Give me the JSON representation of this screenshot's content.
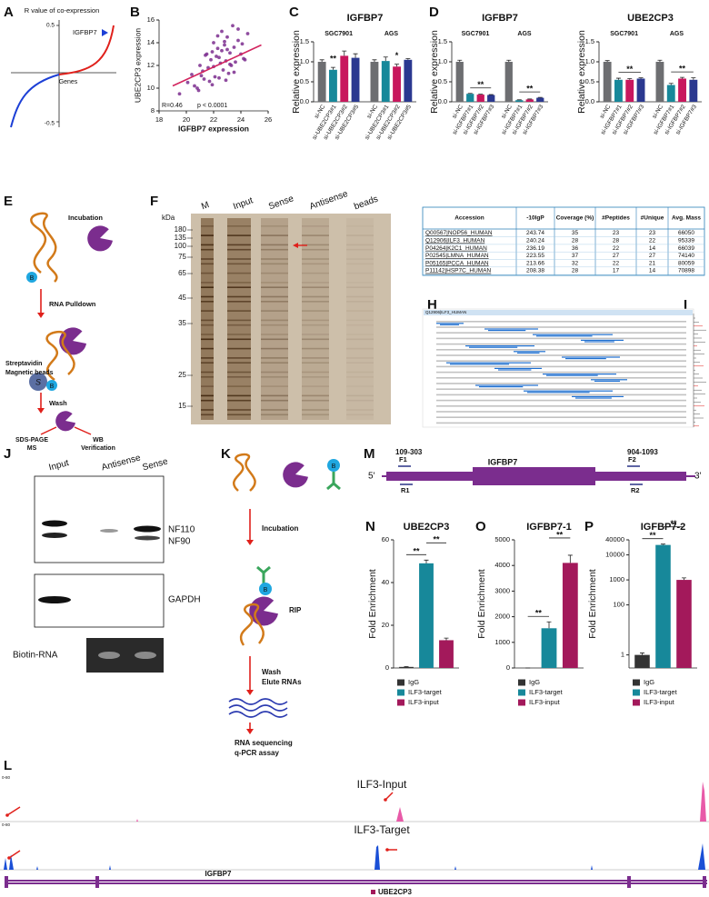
{
  "panels": [
    "A",
    "B",
    "C",
    "D",
    "E",
    "F",
    "G",
    "H",
    "I",
    "J",
    "K",
    "M",
    "N",
    "O",
    "P",
    "L"
  ],
  "panel_a": {
    "y_label": "R value of co-expression",
    "x_label": "Genes",
    "gene": "IGFBP7",
    "yticks": [
      "0.5",
      "-0.5"
    ]
  },
  "chart_data": [
    {
      "type": "scatter",
      "x_label": "IGFBP7 expression",
      "y_label": "UBE2CP3 expression",
      "xlim": [
        18,
        26
      ],
      "xticks": [
        18,
        20,
        22,
        24,
        26
      ],
      "ylim": [
        8,
        16
      ],
      "yticks": [
        8,
        10,
        12,
        14,
        16
      ],
      "color": "#7b2d8e",
      "annotations": [
        "R=0.46",
        "p < 0.0001"
      ],
      "trend_line": {
        "x": [
          19,
          25.5
        ],
        "y": [
          10.2,
          13.8
        ],
        "color": "#d2245e"
      },
      "x": [
        19.5,
        20.1,
        20.4,
        20.8,
        21.0,
        21.2,
        21.3,
        21.5,
        21.6,
        21.8,
        21.9,
        22.0,
        22.1,
        22.2,
        22.3,
        22.4,
        22.5,
        22.6,
        22.7,
        22.8,
        22.9,
        23.0,
        23.1,
        23.2,
        23.3,
        23.4,
        23.5,
        23.6,
        23.8,
        24.0,
        24.2,
        24.5,
        20.9,
        21.4,
        21.7,
        22.0,
        22.3,
        22.6,
        22.9,
        23.2,
        23.5,
        23.8,
        24.1,
        21.1,
        22.4,
        23.0,
        20.6,
        24.3,
        22.8,
        21.9
      ],
      "y": [
        9.5,
        10.5,
        11.2,
        10.0,
        12.0,
        11.5,
        10.8,
        13.0,
        11.8,
        12.5,
        10.3,
        14.0,
        11.0,
        12.8,
        13.5,
        10.9,
        12.2,
        15.0,
        11.6,
        13.8,
        12.4,
        14.5,
        11.3,
        13.1,
        12.0,
        15.5,
        13.6,
        12.3,
        14.2,
        13.0,
        12.6,
        14.8,
        9.8,
        12.9,
        10.6,
        11.9,
        14.6,
        13.3,
        10.7,
        12.1,
        11.4,
        15.2,
        13.9,
        11.1,
        12.7,
        13.4,
        10.2,
        12.5,
        14.1,
        13.2
      ]
    },
    {
      "type": "bar",
      "title": "IGFBP7",
      "y_label": "Relative expression",
      "groups": [
        "SGC7901",
        "AGS"
      ],
      "categories": [
        "si-NC",
        "si-UBE2CP3#1",
        "si-UBE2CP3#2",
        "si-UBE2CP3#5",
        "si-NC",
        "si-UBE2CP3#1",
        "si-UBE2CP3#2",
        "si-UBE2CP3#5"
      ],
      "values": [
        1.0,
        0.8,
        1.15,
        1.1,
        1.0,
        1.02,
        0.88,
        1.05
      ],
      "errors": [
        0.05,
        0.06,
        0.12,
        0.1,
        0.05,
        0.1,
        0.06,
        0.03
      ],
      "colors": [
        "#6d6e71",
        "#17889a",
        "#c8175d",
        "#2b3990",
        "#6d6e71",
        "#17889a",
        "#c8175d",
        "#2b3990"
      ],
      "ylim": [
        0,
        1.5
      ],
      "yticks": [
        {
          "value": 0,
          "label": "0.0"
        },
        {
          "value": 0.5,
          "label": "0.5"
        },
        {
          "value": 1,
          "label": "1.0"
        },
        {
          "value": 1.5,
          "label": "1.5"
        }
      ],
      "annotations": [
        "**",
        "*"
      ]
    },
    {
      "type": "bar",
      "title": "IGFBP7",
      "y_label": "Relative expression",
      "groups": [
        "SGC7901",
        "AGS"
      ],
      "categories": [
        "si-NC",
        "si-IGFBP7#1",
        "si-IGFBP7#2",
        "si-IGFBP7#3",
        "si-NC",
        "si-IGFBP7#1",
        "si-IGFBP7#2",
        "si-IGFBP7#3"
      ],
      "values": [
        1.0,
        0.2,
        0.18,
        0.17,
        1.0,
        0.04,
        0.06,
        0.1
      ],
      "errors": [
        0.04,
        0.01,
        0.01,
        0.01,
        0.04,
        0.01,
        0.01,
        0.01
      ],
      "colors": [
        "#6d6e71",
        "#17889a",
        "#c8175d",
        "#2b3990",
        "#6d6e71",
        "#17889a",
        "#c8175d",
        "#2b3990"
      ],
      "ylim": [
        0,
        1.5
      ],
      "yticks": [
        {
          "value": 0,
          "label": "0.0"
        },
        {
          "value": 0.5,
          "label": "0.5"
        },
        {
          "value": 1,
          "label": "1.0"
        },
        {
          "value": 1.5,
          "label": "1.5"
        }
      ],
      "annotations": [
        "**",
        "**"
      ]
    },
    {
      "type": "bar",
      "title": "UBE2CP3",
      "y_label": "Relative expression",
      "groups": [
        "SGC7901",
        "AGS"
      ],
      "categories": [
        "si-NC",
        "si-IGFBP7#1",
        "si-IGFBP7#2",
        "si-IGFBP7#3",
        "si-NC",
        "si-IGFBP7#1",
        "si-IGFBP7#2",
        "si-IGFBP7#3"
      ],
      "values": [
        1.0,
        0.55,
        0.55,
        0.58,
        1.0,
        0.42,
        0.58,
        0.55
      ],
      "errors": [
        0.03,
        0.04,
        0.03,
        0.02,
        0.04,
        0.04,
        0.03,
        0.05
      ],
      "colors": [
        "#6d6e71",
        "#17889a",
        "#c8175d",
        "#2b3990",
        "#6d6e71",
        "#17889a",
        "#c8175d",
        "#2b3990"
      ],
      "ylim": [
        0,
        1.5
      ],
      "yticks": [
        {
          "value": 0,
          "label": "0.0"
        },
        {
          "value": 0.5,
          "label": "0.5"
        },
        {
          "value": 1,
          "label": "1.0"
        },
        {
          "value": 1.5,
          "label": "1.5"
        }
      ],
      "annotations": [
        "**",
        "**"
      ]
    },
    {
      "type": "bar",
      "title": "UBE2CP3",
      "y_label": "Fold Enrichment",
      "legend": "bottom",
      "categories": [
        "IgG",
        "ILF3-target",
        "ILF3-input"
      ],
      "values": [
        0.5,
        49,
        13
      ],
      "errors": [
        0.2,
        1.5,
        1
      ],
      "colors": [
        "#333333",
        "#17889a",
        "#a3195b"
      ],
      "ylim": [
        0,
        60
      ],
      "yticks": [
        0,
        20,
        40,
        60
      ],
      "annotations": [
        "**",
        "**"
      ]
    },
    {
      "type": "bar",
      "title": "IGFBP7-1",
      "y_label": "Fold Enrichment",
      "legend": "bottom",
      "categories": [
        "IgG",
        "ILF3-target",
        "ILF3-input"
      ],
      "values": [
        0,
        1550,
        4100
      ],
      "errors": [
        0,
        250,
        300
      ],
      "colors": [
        "#333333",
        "#17889a",
        "#a3195b"
      ],
      "ylim": [
        0,
        5000
      ],
      "yticks": [
        0,
        1000,
        2000,
        3000,
        4000,
        5000
      ],
      "annotations": [
        "**",
        "**"
      ]
    },
    {
      "type": "bar",
      "title": "IGFBP7-2",
      "y_label": "Fold Enrichment",
      "legend": "bottom",
      "yscale": "log",
      "categories": [
        "IgG",
        "ILF3-target",
        "ILF3-input"
      ],
      "values": [
        1,
        25000,
        1000
      ],
      "errors": [
        0.2,
        2000,
        200
      ],
      "colors": [
        "#333333",
        "#17889a",
        "#a3195b"
      ],
      "ylim": [
        0.3,
        40000
      ],
      "yticks": [
        1,
        100,
        1000,
        10000,
        40000
      ],
      "annotations": [
        "**",
        "**"
      ]
    }
  ],
  "pulldown": {
    "incubation": "Incubation",
    "pulldown": "RNA Pulldown",
    "beads": [
      "Streptavidin",
      "Magnetic beads"
    ],
    "wash": "Wash",
    "outputs": [
      [
        "SDS-PAGE",
        "MS"
      ],
      [
        "WB",
        "Verification"
      ]
    ],
    "biotin": "B",
    "streptavidin": "S"
  },
  "silver_gel": {
    "unit": "kDa",
    "lanes": [
      "M",
      "Input",
      "Sense",
      "Antisense",
      "beads"
    ],
    "markers": [
      "180",
      "135",
      "100",
      "75",
      "65",
      "45",
      "35",
      "25",
      "15"
    ]
  },
  "table": {
    "columns": [
      "Accession",
      "-10lgP",
      "Coverage (%)",
      "#Peptides",
      "#Unique",
      "Avg. Mass"
    ],
    "rows": [
      [
        "Q00567|NOP56_HUMAN",
        243.74,
        35,
        23,
        23,
        66050
      ],
      [
        "Q12906|ILF3_HUMAN",
        240.24,
        28,
        28,
        22,
        95339
      ],
      [
        "P04264|K2C1_HUMAN",
        236.19,
        36,
        22,
        14,
        66039
      ],
      [
        "P02545|LMNA_HUMAN",
        223.55,
        37,
        27,
        27,
        74140
      ],
      [
        "P05165|PCCA_HUMAN",
        213.66,
        32,
        22,
        21,
        80059
      ],
      [
        "P11142|HSP7C_HUMAN",
        208.38,
        28,
        17,
        14,
        70898
      ]
    ]
  },
  "sequence": {
    "title": "Q12906|ILF3_HUMAN"
  },
  "western": {
    "lanes": [
      "Input",
      "Antisense",
      "Sense"
    ],
    "bands": [
      "NF110",
      "NF90"
    ],
    "control": "GAPDH",
    "rna": "Biotin-RNA"
  },
  "rip": {
    "steps": [
      "Incubation",
      "RIP",
      "Wash",
      "Elute RNAs",
      "RNA sequencing",
      "q-PCR assay"
    ],
    "biotin": "B"
  },
  "gene_map": {
    "five": "5'",
    "three": "3'",
    "gene": "IGFBP7",
    "regions": [
      "109-303",
      "904-1093"
    ],
    "primers": [
      "F1",
      "R1",
      "F2",
      "R2"
    ]
  },
  "tracks": {
    "scale": "0-80",
    "names": [
      "ILF3-Input",
      "ILF3-Target"
    ],
    "genes": [
      "IGFBP7",
      "UBE2CP3"
    ]
  }
}
